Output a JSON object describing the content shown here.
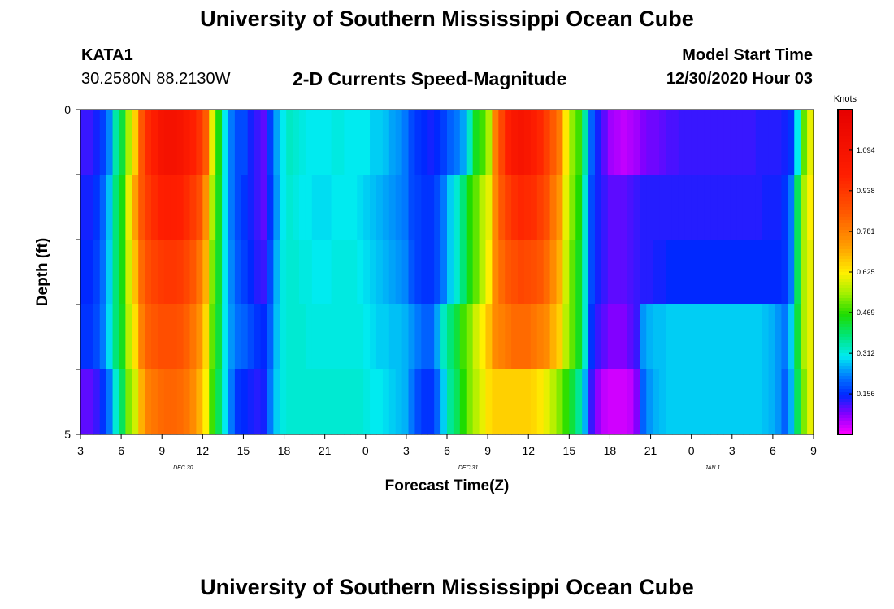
{
  "header": {
    "title": "University of Southern Mississippi Ocean Cube",
    "station_id": "KATA1",
    "station_coords": "30.2580N 88.2130W",
    "chart_title": "2-D Currents Speed-Magnitude",
    "model_start_label": "Model Start Time",
    "model_start_time": "12/30/2020 Hour 03"
  },
  "footer": {
    "title": "University of Southern Mississippi Ocean Cube"
  },
  "chart_data": {
    "type": "heatmap",
    "title": "2-D Currents Speed-Magnitude",
    "xlabel": "Forecast Time(Z)",
    "ylabel": "Depth (ft)",
    "x_tick_labels": [
      "3",
      "6",
      "9",
      "12",
      "15",
      "18",
      "21",
      "0",
      "3",
      "6",
      "9",
      "12",
      "15",
      "18",
      "21",
      "0",
      "3",
      "6",
      "9"
    ],
    "date_labels": [
      "DEC 30",
      "DEC 31",
      "JAN 1"
    ],
    "date_label_tick_index": [
      3,
      10,
      16
    ],
    "x_range_hours": [
      0,
      54
    ],
    "y_tick_labels": [
      "0",
      "5"
    ],
    "ylim": [
      0,
      5
    ],
    "y_minor_ticks": [
      1,
      2,
      3,
      4
    ],
    "colorbar": {
      "title": "Knots",
      "ticks": [
        "1.094",
        "0.938",
        "0.781",
        "0.625",
        "0.469",
        "0.312",
        "0.156"
      ],
      "tick_values": [
        1.094,
        0.938,
        0.781,
        0.625,
        0.469,
        0.312,
        0.156
      ],
      "range": [
        0,
        1.25
      ]
    },
    "depth_layers": 5,
    "hours_per_column": 1,
    "speed_knots": [
      [
        0.12,
        0.12,
        0.14,
        0.17,
        0.23,
        0.35,
        0.42,
        0.55,
        0.66,
        0.86,
        0.97,
        1.02,
        1.08,
        1.1,
        1.1,
        1.08,
        1.04,
        1.0,
        0.95,
        0.85,
        0.6,
        0.45,
        0.3,
        0.22,
        0.18,
        0.18,
        0.14,
        0.12,
        0.1,
        0.17,
        0.25,
        0.3,
        0.33,
        0.32,
        0.31,
        0.3,
        0.3,
        0.3,
        0.3,
        0.31,
        0.31,
        0.3,
        0.3,
        0.3,
        0.3,
        0.28,
        0.28,
        0.27,
        0.25,
        0.24,
        0.22,
        0.18,
        0.16,
        0.15,
        0.14,
        0.15,
        0.17,
        0.2,
        0.22,
        0.25,
        0.33,
        0.44,
        0.48,
        0.55,
        0.78,
        0.9,
        1.0,
        1.06,
        1.08,
        1.06,
        1.02,
        0.98,
        0.92,
        0.85,
        0.79,
        0.63,
        0.53,
        0.48,
        0.35,
        0.2,
        0.14,
        0.1,
        0.06,
        0.05,
        0.04,
        0.05,
        0.06,
        0.08,
        0.09,
        0.09,
        0.1,
        0.11,
        0.11,
        0.12,
        0.12,
        0.12,
        0.12,
        0.12,
        0.12,
        0.12,
        0.12,
        0.12,
        0.12,
        0.12,
        0.12,
        0.13,
        0.13,
        0.13,
        0.13,
        0.14,
        0.16,
        0.3,
        0.5,
        0.6
      ],
      [
        0.14,
        0.14,
        0.16,
        0.2,
        0.27,
        0.38,
        0.45,
        0.6,
        0.72,
        0.86,
        0.93,
        0.97,
        1.0,
        1.01,
        1.01,
        1.0,
        0.97,
        0.93,
        0.88,
        0.75,
        0.55,
        0.44,
        0.3,
        0.22,
        0.18,
        0.16,
        0.14,
        0.12,
        0.1,
        0.16,
        0.24,
        0.3,
        0.32,
        0.31,
        0.3,
        0.3,
        0.29,
        0.29,
        0.29,
        0.3,
        0.3,
        0.3,
        0.3,
        0.29,
        0.28,
        0.27,
        0.26,
        0.25,
        0.24,
        0.23,
        0.22,
        0.18,
        0.17,
        0.16,
        0.16,
        0.18,
        0.22,
        0.28,
        0.32,
        0.38,
        0.46,
        0.5,
        0.56,
        0.6,
        0.76,
        0.86,
        0.92,
        0.96,
        0.98,
        0.97,
        0.96,
        0.92,
        0.88,
        0.8,
        0.74,
        0.6,
        0.52,
        0.46,
        0.32,
        0.18,
        0.14,
        0.12,
        0.1,
        0.1,
        0.1,
        0.11,
        0.12,
        0.13,
        0.13,
        0.13,
        0.13,
        0.13,
        0.13,
        0.13,
        0.13,
        0.13,
        0.13,
        0.13,
        0.13,
        0.13,
        0.13,
        0.13,
        0.13,
        0.13,
        0.13,
        0.13,
        0.14,
        0.14,
        0.14,
        0.16,
        0.22,
        0.4,
        0.55,
        0.62
      ],
      [
        0.15,
        0.15,
        0.17,
        0.21,
        0.28,
        0.38,
        0.45,
        0.58,
        0.68,
        0.82,
        0.88,
        0.91,
        0.93,
        0.94,
        0.94,
        0.93,
        0.9,
        0.86,
        0.8,
        0.7,
        0.52,
        0.43,
        0.3,
        0.23,
        0.19,
        0.17,
        0.15,
        0.13,
        0.12,
        0.18,
        0.26,
        0.31,
        0.32,
        0.32,
        0.31,
        0.31,
        0.3,
        0.3,
        0.3,
        0.31,
        0.31,
        0.31,
        0.31,
        0.3,
        0.29,
        0.28,
        0.27,
        0.26,
        0.25,
        0.24,
        0.23,
        0.19,
        0.17,
        0.16,
        0.16,
        0.18,
        0.22,
        0.28,
        0.32,
        0.38,
        0.45,
        0.5,
        0.56,
        0.62,
        0.76,
        0.82,
        0.86,
        0.88,
        0.9,
        0.89,
        0.88,
        0.86,
        0.82,
        0.76,
        0.7,
        0.58,
        0.5,
        0.44,
        0.32,
        0.18,
        0.14,
        0.12,
        0.1,
        0.1,
        0.1,
        0.11,
        0.12,
        0.13,
        0.13,
        0.14,
        0.14,
        0.15,
        0.15,
        0.15,
        0.15,
        0.15,
        0.15,
        0.15,
        0.15,
        0.15,
        0.15,
        0.15,
        0.15,
        0.15,
        0.15,
        0.15,
        0.15,
        0.15,
        0.15,
        0.16,
        0.22,
        0.4,
        0.55,
        0.6
      ],
      [
        0.16,
        0.16,
        0.18,
        0.22,
        0.29,
        0.38,
        0.44,
        0.56,
        0.64,
        0.78,
        0.84,
        0.86,
        0.88,
        0.88,
        0.88,
        0.87,
        0.84,
        0.8,
        0.75,
        0.65,
        0.5,
        0.42,
        0.3,
        0.24,
        0.21,
        0.2,
        0.18,
        0.16,
        0.15,
        0.2,
        0.27,
        0.31,
        0.32,
        0.32,
        0.32,
        0.31,
        0.31,
        0.31,
        0.31,
        0.31,
        0.31,
        0.31,
        0.31,
        0.31,
        0.3,
        0.29,
        0.28,
        0.28,
        0.27,
        0.27,
        0.26,
        0.24,
        0.22,
        0.2,
        0.2,
        0.25,
        0.33,
        0.38,
        0.42,
        0.48,
        0.52,
        0.58,
        0.62,
        0.68,
        0.76,
        0.78,
        0.8,
        0.82,
        0.82,
        0.82,
        0.8,
        0.78,
        0.76,
        0.7,
        0.66,
        0.56,
        0.5,
        0.44,
        0.32,
        0.16,
        0.12,
        0.1,
        0.08,
        0.08,
        0.08,
        0.1,
        0.12,
        0.24,
        0.26,
        0.27,
        0.27,
        0.28,
        0.28,
        0.28,
        0.28,
        0.28,
        0.28,
        0.28,
        0.28,
        0.28,
        0.28,
        0.28,
        0.28,
        0.28,
        0.28,
        0.28,
        0.27,
        0.26,
        0.24,
        0.22,
        0.28,
        0.42,
        0.55,
        0.6
      ],
      [
        0.1,
        0.1,
        0.12,
        0.16,
        0.22,
        0.32,
        0.4,
        0.52,
        0.58,
        0.7,
        0.78,
        0.8,
        0.82,
        0.83,
        0.83,
        0.82,
        0.8,
        0.76,
        0.7,
        0.62,
        0.48,
        0.4,
        0.3,
        0.22,
        0.16,
        0.15,
        0.14,
        0.13,
        0.14,
        0.22,
        0.28,
        0.31,
        0.32,
        0.32,
        0.32,
        0.32,
        0.32,
        0.32,
        0.32,
        0.32,
        0.32,
        0.32,
        0.32,
        0.32,
        0.31,
        0.3,
        0.3,
        0.29,
        0.28,
        0.27,
        0.26,
        0.22,
        0.18,
        0.16,
        0.16,
        0.2,
        0.28,
        0.36,
        0.4,
        0.46,
        0.52,
        0.56,
        0.6,
        0.64,
        0.66,
        0.66,
        0.66,
        0.66,
        0.66,
        0.66,
        0.65,
        0.63,
        0.6,
        0.56,
        0.52,
        0.47,
        0.42,
        0.36,
        0.26,
        0.12,
        0.07,
        0.04,
        0.03,
        0.03,
        0.03,
        0.04,
        0.08,
        0.2,
        0.24,
        0.26,
        0.27,
        0.28,
        0.28,
        0.28,
        0.28,
        0.28,
        0.28,
        0.28,
        0.28,
        0.28,
        0.28,
        0.28,
        0.28,
        0.28,
        0.28,
        0.28,
        0.27,
        0.26,
        0.24,
        0.2,
        0.26,
        0.4,
        0.52,
        0.6
      ]
    ]
  }
}
